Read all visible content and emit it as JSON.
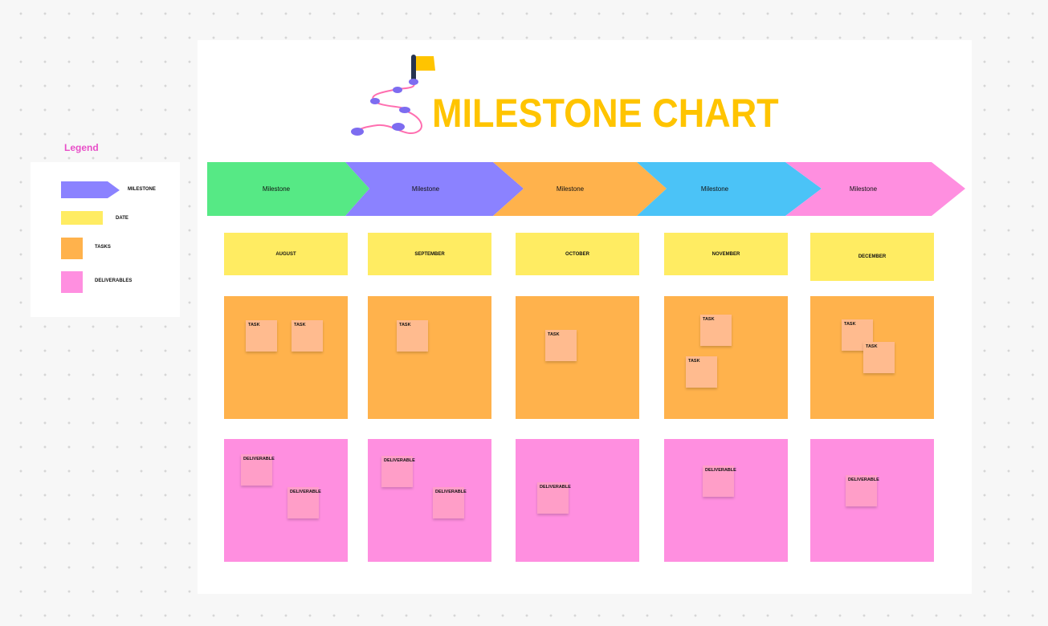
{
  "title": "MILESTONE CHART",
  "legend": {
    "title": "Legend",
    "items": [
      {
        "label": "MILESTONE",
        "color": "#8b82ff"
      },
      {
        "label": "DATE",
        "color": "#ffec62"
      },
      {
        "label": "TASKS",
        "color": "#ffb24c"
      },
      {
        "label": "DELIVERABLES",
        "color": "#ff8fe0"
      }
    ]
  },
  "milestones": [
    {
      "label": "Milestone",
      "color": "#56e985"
    },
    {
      "label": "Milestone",
      "color": "#8b82ff"
    },
    {
      "label": "Milestone",
      "color": "#ffb24c"
    },
    {
      "label": "Milestone",
      "color": "#4bc3f7"
    },
    {
      "label": "Milestone",
      "color": "#ff8fe0"
    }
  ],
  "months": [
    "AUGUST",
    "SEPTEMBER",
    "OCTOBER",
    "NOVEMBER",
    "DECEMBER"
  ],
  "tasks": [
    [
      "TASK",
      "TASK"
    ],
    [
      "TASK"
    ],
    [
      "TASK"
    ],
    [
      "TASK",
      "TASK"
    ],
    [
      "TASK",
      "TASK"
    ]
  ],
  "deliverables": [
    [
      "DELIVERABLE",
      "DELIVERABLE"
    ],
    [
      "DELIVERABLE",
      "DELIVERABLE"
    ],
    [
      "DELIVERABLE"
    ],
    [
      "DELIVERABLE"
    ],
    [
      "DELIVERABLE"
    ]
  ]
}
